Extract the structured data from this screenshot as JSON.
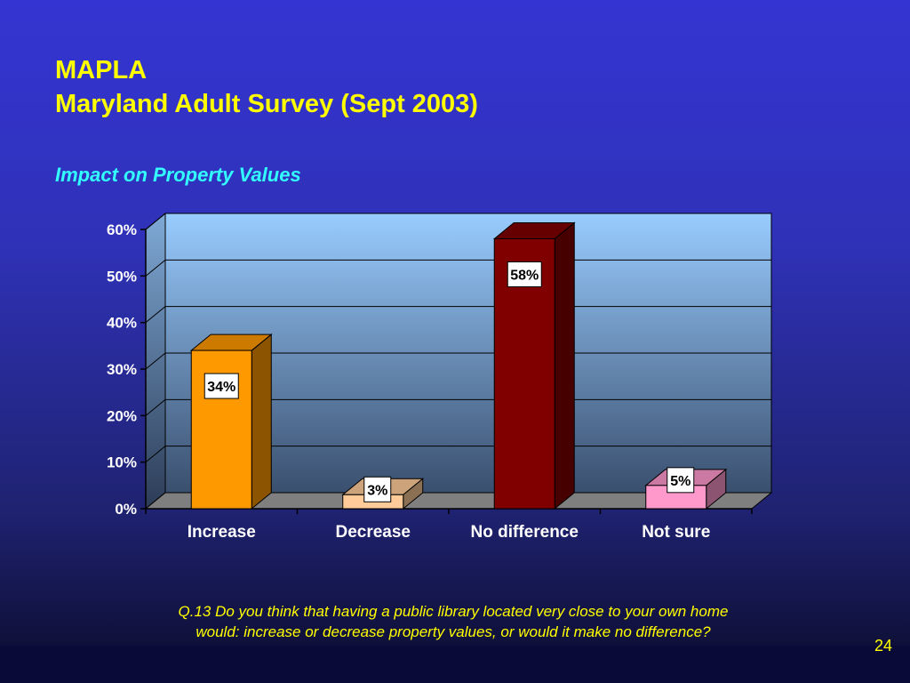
{
  "slide": {
    "title_line1": "MAPLA",
    "title_line2": "Maryland Adult Survey (Sept 2003)",
    "subtitle": "Impact on Property Values",
    "question_line1": "Q.13  Do you think that having a public library located very close to your own home",
    "question_line2": "would: increase or decrease property values, or would it make no difference?",
    "page_number": "24"
  },
  "chart_data": {
    "type": "bar",
    "categories": [
      "Increase",
      "Decrease",
      "No difference",
      "Not sure"
    ],
    "values": [
      34,
      3,
      58,
      5
    ],
    "data_labels": [
      "34%",
      "3%",
      "58%",
      "5%"
    ],
    "ylim": [
      0,
      60
    ],
    "yticks": [
      0,
      10,
      20,
      30,
      40,
      50,
      60
    ],
    "ytick_labels": [
      "0%",
      "10%",
      "20%",
      "30%",
      "40%",
      "50%",
      "60%"
    ],
    "grid": true,
    "legend": "none",
    "colors": {
      "bars": [
        "#ff9900",
        "#ffcc99",
        "#800000",
        "#ff99cc"
      ],
      "plot_wall_top": "#99ccff",
      "plot_wall_bottom": "#3a4f6e",
      "floor": "#7f7f7f"
    }
  }
}
